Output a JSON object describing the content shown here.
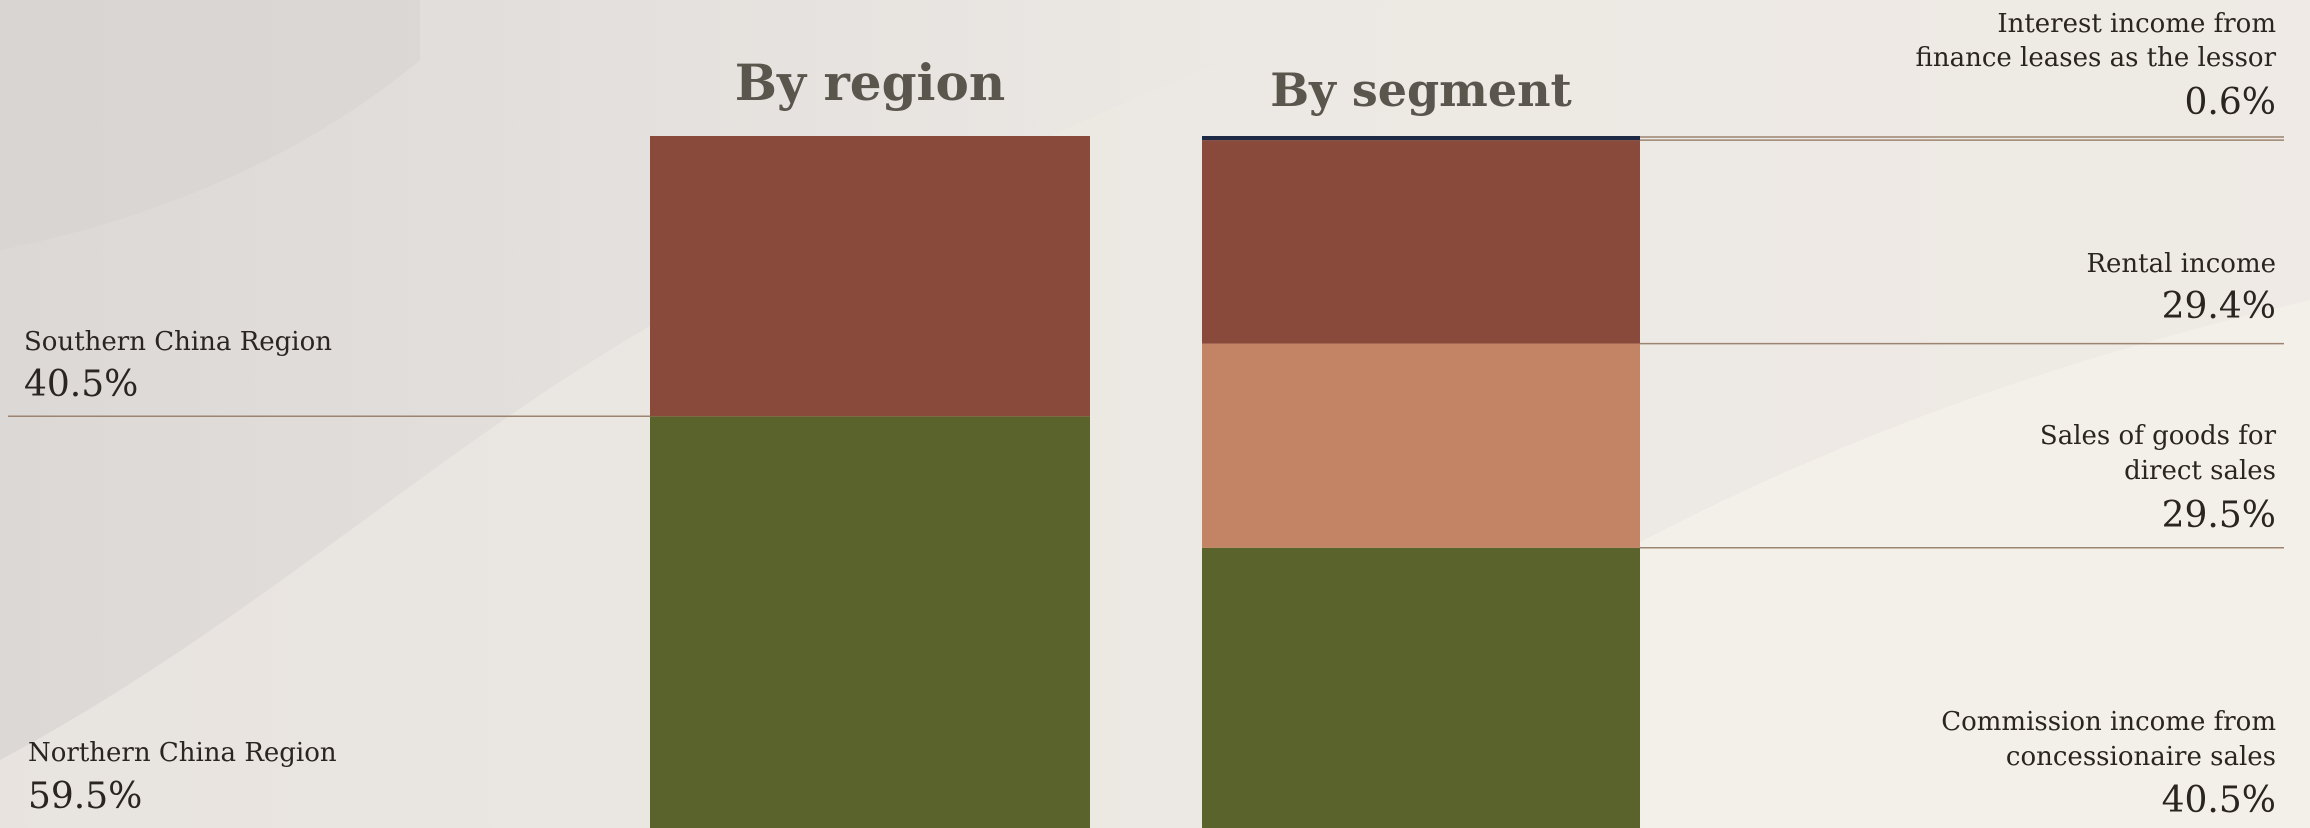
{
  "colors": {
    "brown": "#8a4a3b",
    "tan": "#c28464",
    "green": "#5b632c",
    "navy": "#1e2a44",
    "leader": "#9c8470"
  },
  "chart_data": [
    {
      "type": "bar",
      "stacked": true,
      "title": "By region",
      "unit": "%",
      "ylim": [
        0,
        100
      ],
      "series": [
        {
          "name": "Northern China Region",
          "value": 59.5,
          "label": "59.5%",
          "color": "#5b632c"
        },
        {
          "name": "Southern China Region",
          "value": 40.5,
          "label": "40.5%",
          "color": "#8a4a3b"
        }
      ]
    },
    {
      "type": "bar",
      "stacked": true,
      "title": "By segment",
      "unit": "%",
      "ylim": [
        0,
        100
      ],
      "series": [
        {
          "name": "Commission income from concessionaire sales",
          "value": 40.5,
          "label": "40.5%",
          "color": "#5b632c"
        },
        {
          "name": "Sales of goods for direct sales",
          "value": 29.5,
          "label": "29.5%",
          "color": "#c28464"
        },
        {
          "name": "Rental income",
          "value": 29.4,
          "label": "29.4%",
          "color": "#8a4a3b"
        },
        {
          "name": "Interest income from finance leases as the lessor",
          "value": 0.6,
          "label": "0.6%",
          "color": "#1e2a44"
        }
      ]
    }
  ]
}
